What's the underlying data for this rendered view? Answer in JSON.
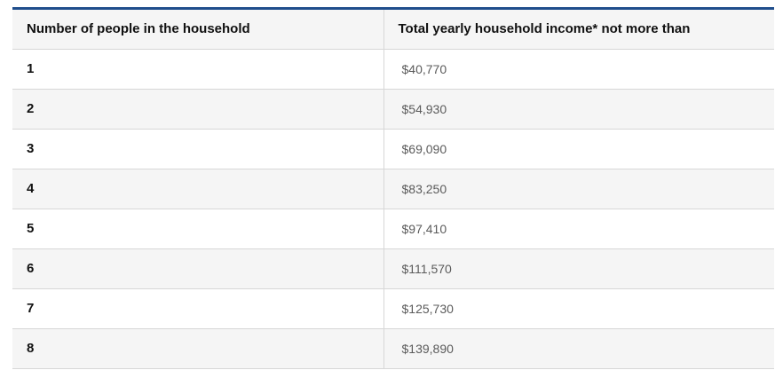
{
  "table": {
    "headers": [
      "Number of people in the household",
      "Total yearly household income* not more than"
    ],
    "rows": [
      {
        "people": "1",
        "income": "$40,770"
      },
      {
        "people": "2",
        "income": "$54,930"
      },
      {
        "people": "3",
        "income": "$69,090"
      },
      {
        "people": "4",
        "income": "$83,250"
      },
      {
        "people": "5",
        "income": "$97,410"
      },
      {
        "people": "6",
        "income": "$111,570"
      },
      {
        "people": "7",
        "income": "$125,730"
      },
      {
        "people": "8",
        "income": "$139,890"
      }
    ]
  },
  "colors": {
    "top_rule": "#1f4e8c",
    "header_background": "#f5f5f5",
    "alternate_row_background": "#f5f5f5",
    "border": "#d7d7d7"
  }
}
